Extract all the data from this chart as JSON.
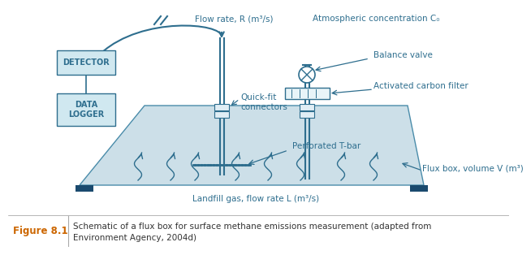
{
  "bg_color": "#ffffff",
  "box_fill": "#ccdfe8",
  "box_edge": "#4a8caa",
  "dark_blue": "#2e6e8e",
  "label_color": "#2e6e8e",
  "detector_fill": "#d0e8f0",
  "dark_block": "#1a4a6e",
  "caption_color": "#333333",
  "figure_label_color": "#cc6600",
  "figure_label": "Figure 8.1",
  "caption_line1": "Schematic of a flux box for surface methane emissions measurement (adapted from",
  "caption_line2": "Environment Agency, 2004d)",
  "labels": {
    "flow_rate": "Flow rate, R (m³/s)",
    "atm_conc": "Atmospheric concentration C₀",
    "balance_valve": "Balance valve",
    "carbon_filter": "Activated carbon filter",
    "quick_fit": "Quick-fit\nconnectors",
    "perforated": "Perforated T-bar",
    "flux_box": "Flux box, volume V (m³)",
    "landfill_gas": "Landfill gas, flow rate L (m³/s)",
    "detector": "DETECTOR",
    "data_logger": "DATA\nLOGGER"
  }
}
